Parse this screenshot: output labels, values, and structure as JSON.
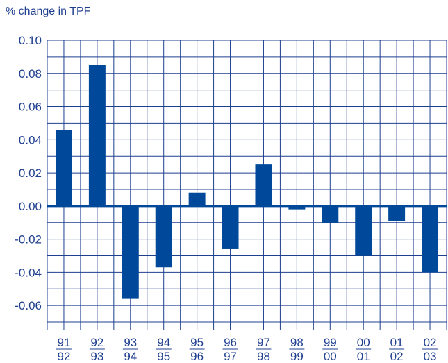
{
  "chart_data": {
    "type": "bar",
    "title": "",
    "xlabel": "",
    "ylabel": "% change in TPF",
    "categories": [
      {
        "top": "91",
        "bottom": "92"
      },
      {
        "top": "92",
        "bottom": "93"
      },
      {
        "top": "93",
        "bottom": "94"
      },
      {
        "top": "94",
        "bottom": "95"
      },
      {
        "top": "95",
        "bottom": "96"
      },
      {
        "top": "96",
        "bottom": "97"
      },
      {
        "top": "97",
        "bottom": "98"
      },
      {
        "top": "98",
        "bottom": "99"
      },
      {
        "top": "99",
        "bottom": "00"
      },
      {
        "top": "00",
        "bottom": "01"
      },
      {
        "top": "01",
        "bottom": "02"
      },
      {
        "top": "02",
        "bottom": "03"
      }
    ],
    "values": [
      0.046,
      0.085,
      -0.056,
      -0.037,
      0.008,
      -0.026,
      0.025,
      -0.002,
      -0.01,
      -0.03,
      -0.009,
      -0.04
    ],
    "ylim": [
      -0.075,
      0.1
    ],
    "yticks": [
      "0.10",
      "0.08",
      "0.06",
      "0.04",
      "0.02",
      "0.00",
      "-0.02",
      "-0.04",
      "-0.06"
    ],
    "ytick_values": [
      0.1,
      0.08,
      0.06,
      0.04,
      0.02,
      0.0,
      -0.02,
      -0.04,
      -0.06
    ],
    "grid": true,
    "legend": "none",
    "colors": {
      "bar": "#004899",
      "grid": "#1f3f8f",
      "text": "#1f3f8f"
    }
  }
}
